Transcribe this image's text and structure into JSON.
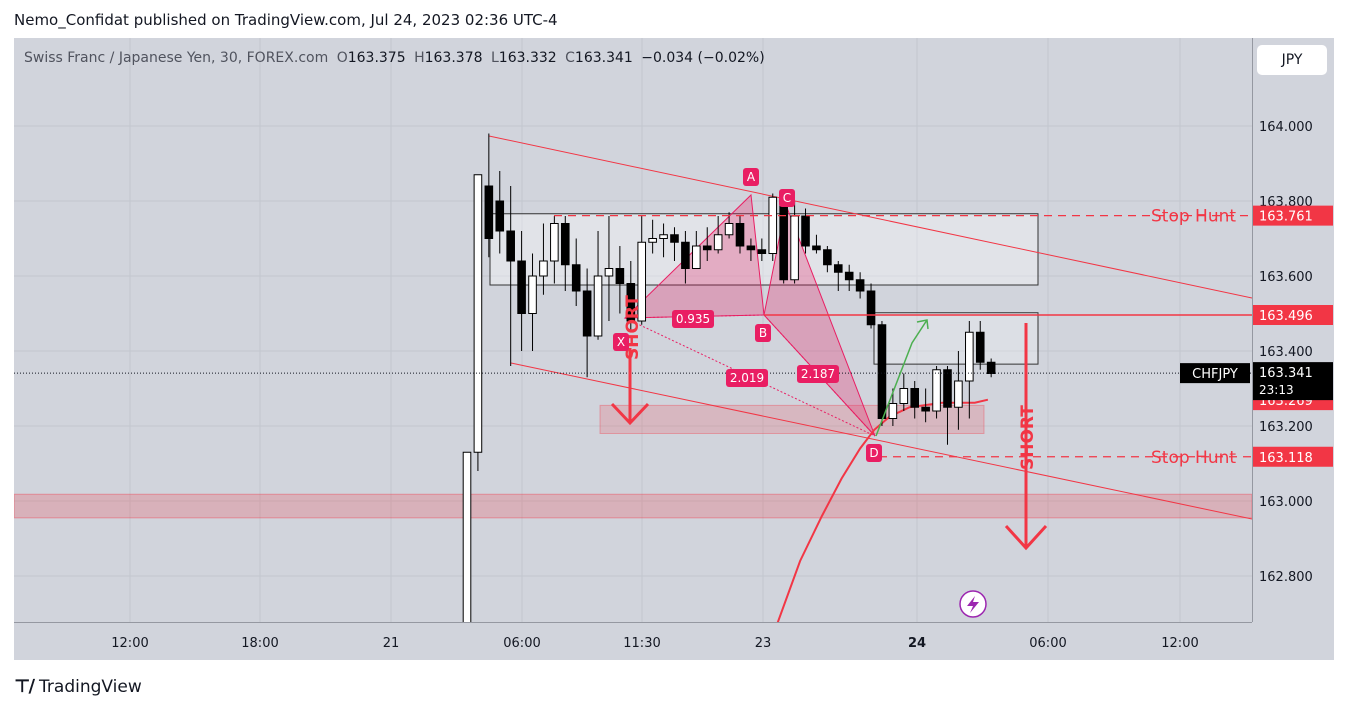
{
  "publisher": "Nemo_Confidat published on TradingView.com, Jul 24, 2023 02:36 UTC-4",
  "legend": {
    "instrument": "Swiss Franc / Japanese Yen, 30, FOREX.com",
    "o_label": "O",
    "o": "163.375",
    "h_label": "H",
    "h": "163.378",
    "l_label": "L",
    "l": "163.332",
    "c_label": "C",
    "c": "163.341",
    "change": "−0.034 (−0.02%)"
  },
  "currency_button": "JPY",
  "footer": {
    "brand": "TradingView"
  },
  "colors": {
    "bull": "#ffffff",
    "bear": "#000000",
    "accent": "#f23645",
    "pattern": "#e91e63",
    "green": "#4caf50",
    "background": "#d1d4dc"
  },
  "chart_data": {
    "type": "candlestick",
    "symbol": "CHFJPY",
    "timeframe": "30",
    "y_range": [
      162.68,
      164.2
    ],
    "y_ticks": [
      "164.000",
      "163.800",
      "163.600",
      "163.400",
      "163.200",
      "163.000",
      "162.800"
    ],
    "x_ticks": [
      "12:00",
      "18:00",
      "21",
      "06:00",
      "11:30",
      "23",
      "24",
      "06:00",
      "12:00"
    ],
    "price_labels": {
      "stop_hunt_top": "163.761",
      "resistance": "163.496",
      "last": "163.341",
      "countdown": "23:13",
      "support": "163.269",
      "stop_hunt_bottom": "163.118",
      "symbol_tag": "CHFJPY"
    },
    "annotations": {
      "stop_hunt": "Stop Hunt",
      "short": "SHORT",
      "points": [
        "X",
        "A",
        "B",
        "C",
        "D"
      ],
      "ratios": [
        "0.935",
        "2.019",
        "2.187"
      ]
    },
    "candles": [
      [
        162.6,
        163.13,
        162.6,
        163.13
      ],
      [
        163.13,
        163.87,
        163.08,
        163.84
      ],
      [
        163.84,
        163.7,
        163.98,
        163.65
      ],
      [
        163.8,
        163.72,
        163.88,
        163.66
      ],
      [
        163.72,
        163.64,
        163.84,
        163.36
      ],
      [
        163.64,
        163.5,
        163.72,
        163.4
      ],
      [
        163.5,
        163.6,
        163.66,
        163.4
      ],
      [
        163.6,
        163.64,
        163.74,
        163.55
      ],
      [
        163.64,
        163.74,
        163.76,
        163.58
      ],
      [
        163.74,
        163.63,
        163.76,
        163.56
      ],
      [
        163.63,
        163.56,
        163.7,
        163.52
      ],
      [
        163.56,
        163.44,
        163.62,
        163.33
      ],
      [
        163.44,
        163.6,
        163.72,
        163.43
      ],
      [
        163.6,
        163.62,
        163.76,
        163.48
      ],
      [
        163.62,
        163.58,
        163.68,
        163.5
      ],
      [
        163.58,
        163.48,
        163.64,
        163.45
      ],
      [
        163.48,
        163.69,
        163.76,
        163.47
      ],
      [
        163.69,
        163.7,
        163.75,
        163.66
      ],
      [
        163.7,
        163.71,
        163.74,
        163.65
      ],
      [
        163.71,
        163.69,
        163.73,
        163.64
      ],
      [
        163.69,
        163.62,
        163.72,
        163.58
      ],
      [
        163.62,
        163.68,
        163.72,
        163.62
      ],
      [
        163.68,
        163.67,
        163.73,
        163.64
      ],
      [
        163.67,
        163.71,
        163.76,
        163.66
      ],
      [
        163.71,
        163.74,
        163.77,
        163.7
      ],
      [
        163.74,
        163.68,
        163.76,
        163.66
      ],
      [
        163.68,
        163.67,
        163.7,
        163.64
      ],
      [
        163.67,
        163.66,
        163.7,
        163.64
      ],
      [
        163.66,
        163.81,
        163.82,
        163.64
      ],
      [
        163.81,
        163.59,
        163.82,
        163.58
      ],
      [
        163.59,
        163.76,
        163.8,
        163.58
      ],
      [
        163.76,
        163.68,
        163.78,
        163.66
      ],
      [
        163.68,
        163.67,
        163.71,
        163.66
      ],
      [
        163.67,
        163.63,
        163.68,
        163.61
      ],
      [
        163.63,
        163.61,
        163.64,
        163.56
      ],
      [
        163.61,
        163.59,
        163.63,
        163.56
      ],
      [
        163.59,
        163.56,
        163.61,
        163.54
      ],
      [
        163.56,
        163.47,
        163.58,
        163.46
      ],
      [
        163.47,
        163.22,
        163.48,
        163.2
      ],
      [
        163.22,
        163.26,
        163.3,
        163.2
      ],
      [
        163.26,
        163.3,
        163.34,
        163.24
      ],
      [
        163.3,
        163.25,
        163.32,
        163.22
      ],
      [
        163.25,
        163.24,
        163.3,
        163.21
      ],
      [
        163.24,
        163.35,
        163.36,
        163.22
      ],
      [
        163.35,
        163.25,
        163.36,
        163.15
      ],
      [
        163.25,
        163.32,
        163.4,
        163.19
      ],
      [
        163.32,
        163.45,
        163.48,
        163.22
      ],
      [
        163.45,
        163.37,
        163.48,
        163.35
      ],
      [
        163.37,
        163.34,
        163.38,
        163.33
      ]
    ],
    "ema_points": [
      [
        28.0,
        162.64
      ],
      [
        30.5,
        162.84
      ],
      [
        32.5,
        162.96
      ],
      [
        34.3,
        163.06
      ],
      [
        36.0,
        163.14
      ],
      [
        37.3,
        163.19
      ],
      [
        38.7,
        163.225
      ],
      [
        40.5,
        163.25
      ],
      [
        43.5,
        163.262
      ],
      [
        46.5,
        163.262
      ],
      [
        47.7,
        163.27
      ]
    ]
  }
}
